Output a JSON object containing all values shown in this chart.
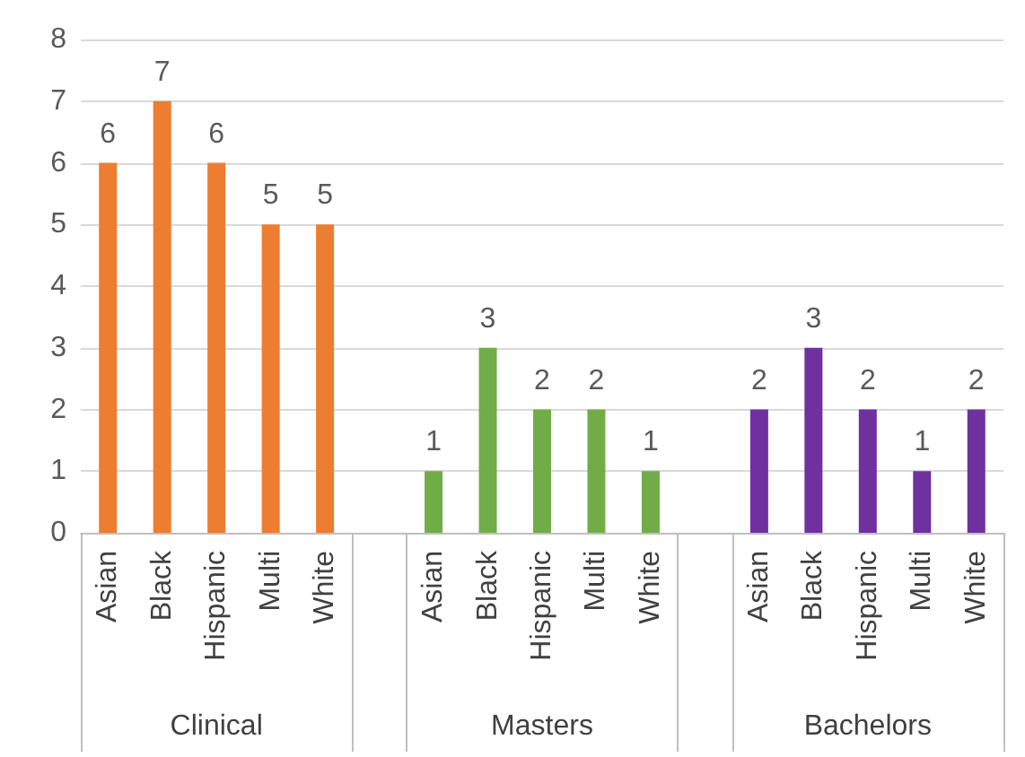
{
  "chart_data": {
    "type": "bar",
    "categories": [
      "Asian",
      "Black",
      "Hispanic",
      "Multi",
      "White",
      null,
      "Asian",
      "Black",
      "Hispanic",
      "Multi",
      "White",
      null,
      "Asian",
      "Black",
      "Hispanic",
      "Multi",
      "White"
    ],
    "series": [
      {
        "color": "#ed7d31",
        "values": [
          6,
          7,
          6,
          5,
          5,
          null,
          null,
          null,
          null,
          null,
          null,
          null,
          null,
          null,
          null,
          null,
          null
        ]
      },
      {
        "color": "#70ad47",
        "values": [
          null,
          null,
          null,
          null,
          null,
          null,
          1,
          3,
          2,
          2,
          1,
          null,
          null,
          null,
          null,
          null,
          null
        ]
      },
      {
        "color": "#7030a0",
        "values": [
          null,
          null,
          null,
          null,
          null,
          null,
          null,
          null,
          null,
          null,
          null,
          null,
          2,
          3,
          2,
          1,
          2
        ]
      }
    ],
    "annotations": [
      "Clinical",
      "Masters",
      "Bachelors"
    ],
    "ylim": [
      0,
      8
    ],
    "yticks": [
      0,
      1,
      2,
      3,
      4,
      5,
      6,
      7,
      8
    ],
    "grid": true,
    "data_labels": true
  }
}
